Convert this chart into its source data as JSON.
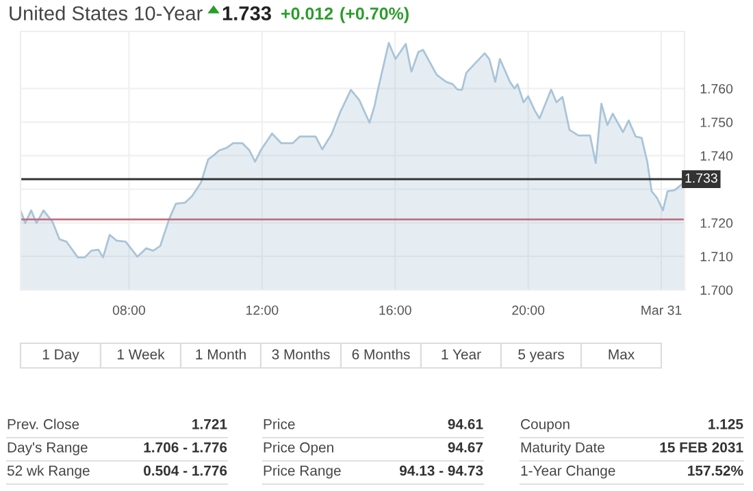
{
  "chart_data": {
    "type": "area",
    "title": "United States 10-Year",
    "x": [
      4.74,
      4.88,
      5.06,
      5.22,
      5.43,
      5.7,
      5.91,
      6.12,
      6.46,
      6.67,
      6.87,
      7.08,
      7.22,
      7.42,
      7.63,
      7.9,
      8.25,
      8.52,
      8.73,
      8.94,
      9.21,
      9.41,
      9.69,
      9.9,
      10.17,
      10.38,
      10.52,
      10.72,
      10.93,
      11.13,
      11.41,
      11.62,
      11.79,
      11.96,
      12.3,
      12.58,
      12.92,
      13.13,
      13.61,
      13.81,
      14.09,
      14.36,
      14.67,
      14.92,
      15.23,
      15.39,
      15.46,
      15.6,
      15.81,
      16.01,
      16.32,
      16.49,
      16.7,
      16.84,
      17.25,
      17.53,
      17.73,
      17.87,
      18.01,
      18.14,
      18.69,
      18.83,
      19.01,
      19.15,
      19.45,
      19.59,
      19.68,
      19.86,
      20.0,
      20.21,
      20.34,
      20.69,
      20.85,
      21.03,
      21.24,
      21.51,
      21.86,
      22.03,
      22.2,
      22.38,
      22.54,
      22.85,
      23.02,
      23.23,
      23.41,
      23.58,
      23.71,
      23.88,
      24.05,
      24.19,
      24.4,
      24.61,
      24.7
    ],
    "series": [
      {
        "color": "#a9c4d8",
        "values": [
          1.7237,
          1.7199,
          1.7237,
          1.7199,
          1.7237,
          1.7203,
          1.7151,
          1.7144,
          1.7097,
          1.7097,
          1.7117,
          1.712,
          1.7097,
          1.7164,
          1.7147,
          1.7144,
          1.7099,
          1.7124,
          1.7117,
          1.7131,
          1.7212,
          1.7257,
          1.726,
          1.728,
          1.7321,
          1.7389,
          1.7399,
          1.7416,
          1.7423,
          1.7437,
          1.7437,
          1.7416,
          1.7382,
          1.7416,
          1.7466,
          1.7437,
          1.7437,
          1.7457,
          1.7457,
          1.7419,
          1.7464,
          1.7532,
          1.7596,
          1.7566,
          1.7498,
          1.7552,
          1.7586,
          1.7647,
          1.7736,
          1.7688,
          1.7733,
          1.765,
          1.7709,
          1.7715,
          1.7641,
          1.762,
          1.7613,
          1.7597,
          1.7596,
          1.7647,
          1.7705,
          1.7688,
          1.762,
          1.7688,
          1.762,
          1.76,
          1.7613,
          1.7559,
          1.7577,
          1.7532,
          1.7511,
          1.7597,
          1.7559,
          1.7575,
          1.7477,
          1.746,
          1.746,
          1.7378,
          1.7555,
          1.7491,
          1.7525,
          1.747,
          1.7505,
          1.7457,
          1.7453,
          1.7382,
          1.7294,
          1.7273,
          1.7237,
          1.7294,
          1.7297,
          1.7314,
          1.7328
        ]
      }
    ],
    "xlim": [
      4.74,
      24.7
    ],
    "xticks": [
      {
        "value": 8,
        "label": "08:00"
      },
      {
        "value": 12,
        "label": "12:00"
      },
      {
        "value": 16,
        "label": "16:00"
      },
      {
        "value": 20,
        "label": "20:00"
      },
      {
        "value": 24,
        "label": "Mar 31"
      }
    ],
    "ylim": [
      1.7,
      1.777
    ],
    "yticks": [
      {
        "value": 1.7,
        "label": "1.700"
      },
      {
        "value": 1.71,
        "label": "1.710"
      },
      {
        "value": 1.72,
        "label": "1.720"
      },
      {
        "value": 1.73,
        "label": null
      },
      {
        "value": 1.74,
        "label": "1.740"
      },
      {
        "value": 1.75,
        "label": "1.750"
      },
      {
        "value": 1.76,
        "label": "1.760"
      }
    ],
    "grid": true,
    "ref_lines": [
      {
        "axis": "y",
        "value": 1.733,
        "label": "1.733",
        "color": "#333333"
      },
      {
        "axis": "y",
        "value": 1.721,
        "color": "#c07080"
      }
    ],
    "annotations": [
      "1.733",
      "+0.012",
      "(+0.70%)",
      "1 Day",
      "1 Week",
      "1 Month",
      "3 Months",
      "6 Months",
      "1 Year",
      "5 years",
      "Max",
      "Prev. Close",
      "1.721",
      "Day's Range",
      "1.706 - 1.776",
      "52 wk Range",
      "0.504 - 1.776",
      "Price",
      "94.61",
      "Price Open",
      "94.67",
      "Price Range",
      "94.13 - 94.73",
      "Coupon",
      "1.125",
      "Maturity Date",
      "15 FEB 2031",
      "1-Year Change",
      "157.52%"
    ]
  }
}
